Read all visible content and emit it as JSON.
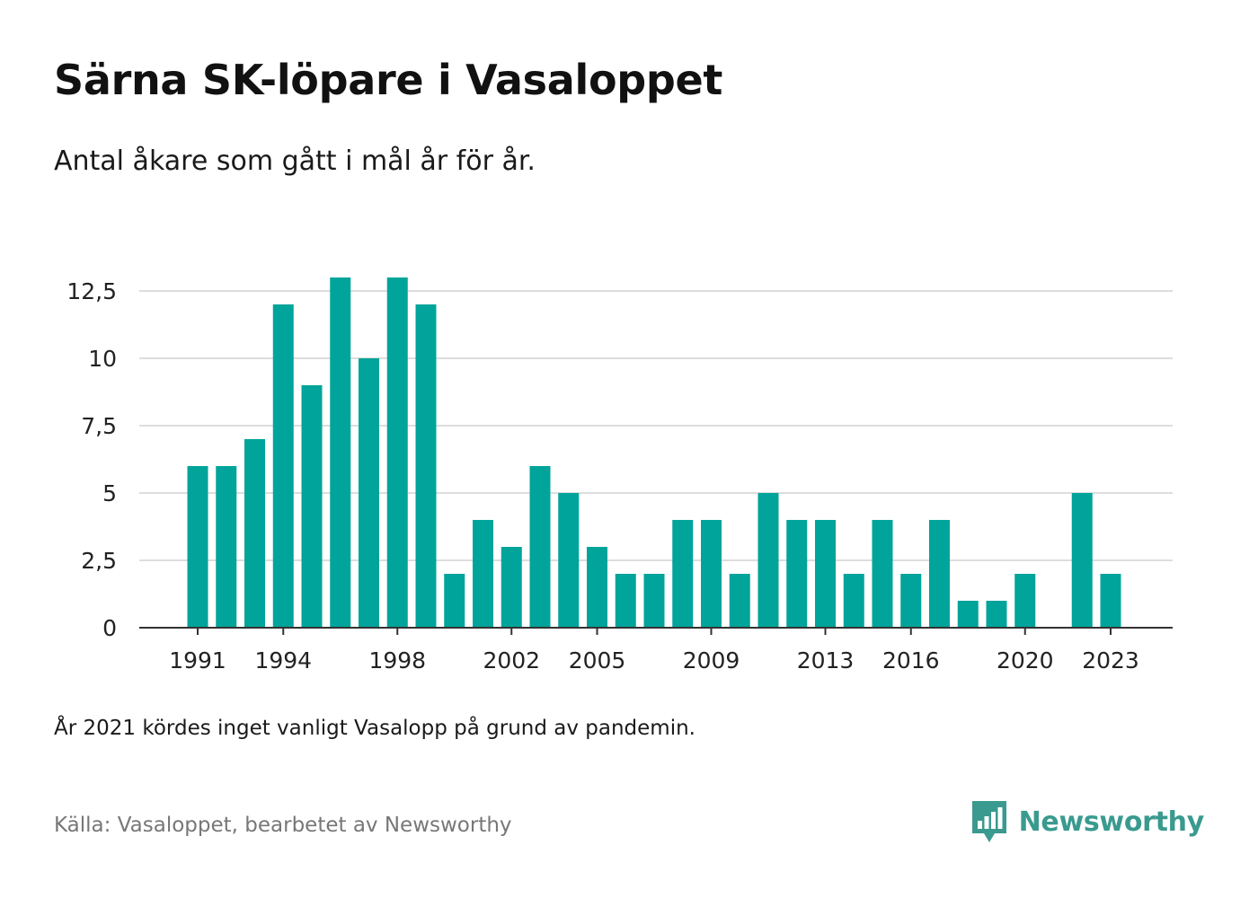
{
  "header": {
    "title": "Särna SK-löpare i Vasaloppet",
    "subtitle": "Antal åkare som gått i mål år för år."
  },
  "footer": {
    "note": "År 2021 kördes inget vanligt Vasalopp på grund av pandemin.",
    "source": "Källa: Vasaloppet, bearbetet av Newsworthy",
    "brand": "Newsworthy",
    "brand_icon": "newsworthy-logo-icon"
  },
  "colors": {
    "bar": "#00a49a",
    "grid": "#dddddd",
    "axis": "#333333",
    "brand": "#3a9a8f"
  },
  "chart_data": {
    "type": "bar",
    "title": "Särna SK-löpare i Vasaloppet",
    "subtitle": "Antal åkare som gått i mål år för år.",
    "xlabel": "",
    "ylabel": "",
    "ylim": [
      0,
      12.5
    ],
    "y_ticks": [
      0,
      2.5,
      5,
      7.5,
      10,
      12.5
    ],
    "y_tick_labels": [
      "0",
      "2,5",
      "5",
      "7,5",
      "10",
      "12,5"
    ],
    "x_tick_labels": [
      "1991",
      "1994",
      "1998",
      "2002",
      "2005",
      "2009",
      "2013",
      "2016",
      "2020",
      "2023"
    ],
    "grid": true,
    "categories": [
      1991,
      1992,
      1993,
      1994,
      1995,
      1996,
      1997,
      1998,
      1999,
      2000,
      2001,
      2002,
      2003,
      2004,
      2005,
      2006,
      2007,
      2008,
      2009,
      2010,
      2011,
      2012,
      2013,
      2014,
      2015,
      2016,
      2017,
      2018,
      2019,
      2020,
      2021,
      2022,
      2023
    ],
    "values": [
      6,
      6,
      7,
      12,
      9,
      13,
      10,
      13,
      12,
      2,
      4,
      3,
      6,
      5,
      3,
      2,
      2,
      4,
      4,
      2,
      5,
      4,
      4,
      2,
      4,
      2,
      4,
      1,
      1,
      2,
      null,
      5,
      2
    ]
  }
}
